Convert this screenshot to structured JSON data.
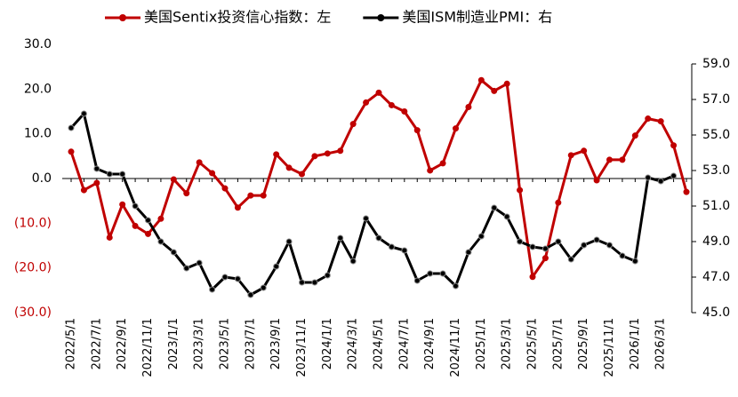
{
  "chart_data": {
    "type": "line",
    "categories": [
      "2022/5/1",
      null,
      "2022/7/1",
      null,
      "2022/9/1",
      null,
      "2022/11/1",
      null,
      "2023/1/1",
      null,
      "2023/3/1",
      null,
      "2023/5/1",
      null,
      "2023/7/1",
      null,
      "2023/9/1",
      null,
      "2023/11/1",
      null,
      "2024/1/1",
      null,
      "2024/3/1",
      null,
      "2024/5/1",
      null,
      "2024/7/1",
      null,
      "2024/9/1",
      null,
      "2024/11/1",
      null,
      "2025/1/1",
      null,
      "2025/3/1",
      null,
      "2025/5/1",
      null,
      "2025/7/1",
      null,
      "2025/9/1",
      null,
      "2025/11/1",
      null,
      "2026/1/1",
      null,
      "2026/3/1",
      null,
      null
    ],
    "series": [
      {
        "name": "美国Sentix投资信心指数：左",
        "color": "#c00000",
        "axis": "y",
        "values": [
          6.0,
          -2.6,
          -1.0,
          -13.2,
          -5.8,
          -10.6,
          -12.4,
          -9.0,
          -0.2,
          -3.3,
          3.6,
          1.2,
          -2.2,
          -6.5,
          -3.8,
          -3.8,
          5.4,
          2.4,
          1.0,
          5.0,
          5.6,
          6.2,
          12.2,
          17.0,
          19.2,
          16.4,
          15.0,
          10.8,
          1.8,
          3.4,
          11.2,
          16.0,
          22.0,
          19.6,
          21.2,
          -2.6,
          -22.0,
          -17.8,
          -5.4,
          5.2,
          6.2,
          -0.4,
          4.2,
          4.2,
          9.6,
          13.4,
          12.8,
          7.4,
          -3.0
        ]
      },
      {
        "name": "美国ISM制造业PMI：右",
        "color": "#000000",
        "axis": "y2",
        "values": [
          55.4,
          56.2,
          53.1,
          52.8,
          52.8,
          51.0,
          50.2,
          49.0,
          48.4,
          47.5,
          47.8,
          46.3,
          47.0,
          46.9,
          46.0,
          46.4,
          47.6,
          49.0,
          46.7,
          46.7,
          47.1,
          49.2,
          47.9,
          50.3,
          49.2,
          48.7,
          48.5,
          46.8,
          47.2,
          47.2,
          46.5,
          48.4,
          49.3,
          50.9,
          50.4,
          49.0,
          48.7,
          48.6,
          49.0,
          48.0,
          48.8,
          49.1,
          48.8,
          48.2,
          47.9,
          52.6,
          52.4,
          52.7,
          null
        ]
      }
    ],
    "ylim": [
      -30,
      30
    ],
    "yticks": [
      {
        "value": 30,
        "label": "30.0"
      },
      {
        "value": 20,
        "label": "20.0"
      },
      {
        "value": 10,
        "label": "10.0"
      },
      {
        "value": 0,
        "label": "0.0"
      },
      {
        "value": -10,
        "label": "(10.0)"
      },
      {
        "value": -20,
        "label": "(20.0)"
      },
      {
        "value": -30,
        "label": "(30.0)"
      }
    ],
    "y2lim": [
      45,
      60.1
    ],
    "y2ticks": [
      {
        "value": 59,
        "label": "59.0"
      },
      {
        "value": 57,
        "label": "57.0"
      },
      {
        "value": 55,
        "label": "55.0"
      },
      {
        "value": 53,
        "label": "53.0"
      },
      {
        "value": 51,
        "label": "51.0"
      },
      {
        "value": 49,
        "label": "49.0"
      },
      {
        "value": 47,
        "label": "47.0"
      },
      {
        "value": 45,
        "label": "45.0"
      }
    ],
    "legend": "top"
  }
}
